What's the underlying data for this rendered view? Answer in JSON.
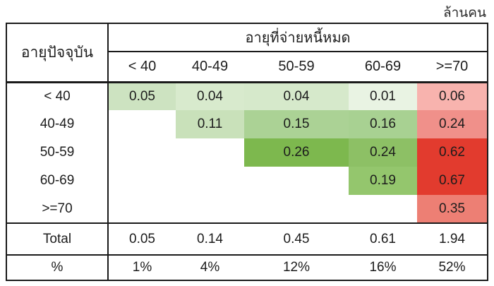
{
  "unit_label": "ล้านคน",
  "table": {
    "row_axis_title": "อายุปัจจุบัน",
    "col_axis_title": "อายุที่จ่ายหนี้หมด",
    "columns": [
      "< 40",
      "40-49",
      "50-59",
      "60-69",
      ">=70"
    ],
    "matrix_rows": [
      {
        "label": "< 40",
        "values": [
          "0.05",
          "0.04",
          "0.04",
          "0.01",
          "0.06"
        ],
        "colors": [
          "#cde3c1",
          "#d8eacd",
          "#d6e9cb",
          "#e9f3e3",
          "#f8b3ae"
        ]
      },
      {
        "label": "40-49",
        "values": [
          "",
          "0.11",
          "0.15",
          "0.16",
          "0.24"
        ],
        "colors": [
          null,
          "#c9e1ba",
          "#abd295",
          "#a8d192",
          "#f0908a"
        ]
      },
      {
        "label": "50-59",
        "values": [
          "",
          "",
          "0.26",
          "0.24",
          "0.62"
        ],
        "colors": [
          null,
          null,
          "#7db84e",
          "#8dc065",
          "#e23b2e"
        ]
      },
      {
        "label": "60-69",
        "values": [
          "",
          "",
          "",
          "0.19",
          "0.67"
        ],
        "colors": [
          null,
          null,
          null,
          "#94c66d",
          "#e23b2e"
        ]
      },
      {
        "label": ">=70",
        "values": [
          "",
          "",
          "",
          "",
          "0.35"
        ],
        "colors": [
          null,
          null,
          null,
          null,
          "#ed7f74"
        ]
      }
    ],
    "total_row": {
      "label": "Total",
      "values": [
        "0.05",
        "0.14",
        "0.45",
        "0.61",
        "1.94"
      ]
    },
    "percent_row": {
      "label": "%",
      "values": [
        "1%",
        "4%",
        "12%",
        "16%",
        "52%"
      ]
    }
  },
  "chart_data": {
    "type": "heatmap",
    "title": "",
    "unit": "ล้านคน",
    "row_axis_label": "อายุปัจจุบัน",
    "col_axis_label": "อายุที่จ่ายหนี้หมด",
    "rows": [
      "< 40",
      "40-49",
      "50-59",
      "60-69",
      ">=70"
    ],
    "columns": [
      "< 40",
      "40-49",
      "50-59",
      "60-69",
      ">=70"
    ],
    "values": [
      [
        0.05,
        0.04,
        0.04,
        0.01,
        0.06
      ],
      [
        null,
        0.11,
        0.15,
        0.16,
        0.24
      ],
      [
        null,
        null,
        0.26,
        0.24,
        0.62
      ],
      [
        null,
        null,
        null,
        0.19,
        0.67
      ],
      [
        null,
        null,
        null,
        null,
        0.35
      ]
    ],
    "totals": [
      0.05,
      0.14,
      0.45,
      0.61,
      1.94
    ],
    "percents": [
      "1%",
      "4%",
      "12%",
      "16%",
      "52%"
    ],
    "colormap": {
      "low_green": "#e9f3e3",
      "high_green": "#7db84e",
      "low_red": "#f8b3ae",
      "high_red": "#e23b2e"
    },
    "layout": {
      "lower_triangle_blank": true,
      "grid": "outer-and-section-lines"
    }
  }
}
